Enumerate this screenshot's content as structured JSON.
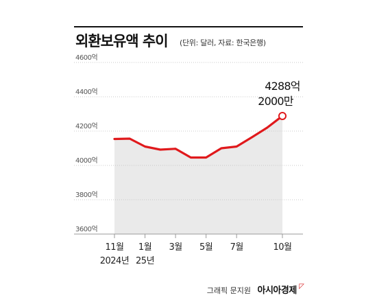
{
  "title": "외환보유액 추이",
  "subtitle": "(단위: 달러, 자료: 한국은행)",
  "credit": "그래픽 문지원",
  "brand": "아시아경제",
  "brand_mark": "ㅁ",
  "colors": {
    "line": "#e0191c",
    "area": "#eaeaea",
    "grid": "#c8c8c8",
    "text": "#222222"
  },
  "chart_data": {
    "type": "area",
    "y_ticks": [
      "4600억",
      "4400억",
      "4200억",
      "4000억",
      "3800억",
      "3600억"
    ],
    "y_tick_values": [
      4600,
      4400,
      4200,
      4000,
      3800,
      3600
    ],
    "ylim": [
      3600,
      4600
    ],
    "x": [
      "2024-11",
      "2024-12",
      "2025-01",
      "2025-02",
      "2025-03",
      "2025-04",
      "2025-05",
      "2025-06",
      "2025-07",
      "2025-08",
      "2025-09",
      "2025-10"
    ],
    "values": [
      4154,
      4156,
      4110,
      4092,
      4097,
      4046,
      4046,
      4100,
      4110,
      4164,
      4220,
      4288.2
    ],
    "x_tick_labels": [
      {
        "x": "2024-11",
        "label": "11월",
        "sub": "2024년"
      },
      {
        "x": "2025-01",
        "label": "1월",
        "sub": "25년"
      },
      {
        "x": "2025-03",
        "label": "3월",
        "sub": ""
      },
      {
        "x": "2025-05",
        "label": "5월",
        "sub": ""
      },
      {
        "x": "2025-07",
        "label": "7월",
        "sub": ""
      },
      {
        "x": "2025-10",
        "label": "10월",
        "sub": ""
      }
    ],
    "annotation": {
      "x": "2025-10",
      "line1": "4288억",
      "line2": "2000만"
    },
    "grid": true
  }
}
